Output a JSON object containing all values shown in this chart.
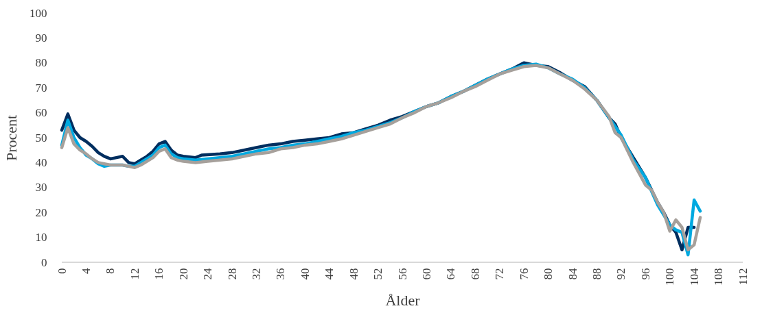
{
  "chart_data": {
    "type": "line",
    "xlabel": "Ålder",
    "ylabel": "Procent",
    "xlim": [
      0,
      112
    ],
    "xticks": [
      0,
      4,
      8,
      12,
      16,
      20,
      24,
      28,
      32,
      36,
      40,
      44,
      48,
      52,
      56,
      60,
      64,
      68,
      72,
      76,
      80,
      84,
      88,
      92,
      96,
      100,
      104,
      108,
      112
    ],
    "ylim": [
      0,
      100
    ],
    "yticks": [
      0,
      10,
      20,
      30,
      40,
      50,
      60,
      70,
      80,
      90,
      100
    ],
    "grid": false,
    "legend": false,
    "line_style": "solid",
    "marker": "none",
    "series": [
      {
        "color": "#002e5f",
        "x": [
          0,
          1,
          2,
          3,
          4,
          5,
          6,
          7,
          8,
          9,
          10,
          11,
          12,
          13,
          14,
          15,
          16,
          17,
          18,
          19,
          20,
          22,
          23,
          26,
          28,
          30,
          32,
          34,
          36,
          38,
          40,
          42,
          44,
          46,
          48,
          50,
          52,
          54,
          56,
          58,
          60,
          62,
          64,
          66,
          68,
          70,
          72,
          74,
          76,
          78,
          80,
          82,
          84,
          86,
          88,
          90,
          91,
          92,
          94,
          96,
          98,
          99,
          100,
          101,
          102,
          103,
          104
        ],
        "values": [
          53,
          59.5,
          53,
          50,
          48.5,
          46.5,
          44,
          42.5,
          41.5,
          42,
          42.5,
          40,
          39.5,
          41,
          42.5,
          44.5,
          47.5,
          48.5,
          45,
          43,
          42.5,
          42,
          43,
          43.5,
          44,
          45,
          46,
          47,
          47.5,
          48.5,
          49,
          49.5,
          50,
          51.5,
          52,
          53.5,
          55,
          57,
          58.5,
          60.5,
          62.5,
          64,
          66.5,
          68.5,
          71,
          73.5,
          75.5,
          77.5,
          80,
          79,
          78.5,
          76,
          73,
          70.5,
          65,
          58,
          55.5,
          50,
          42,
          34,
          24,
          20,
          15,
          12,
          5,
          14,
          14
        ]
      },
      {
        "color": "#00a9e0",
        "x": [
          0,
          1,
          2,
          3,
          4,
          5,
          6,
          7,
          8,
          9,
          10,
          11,
          12,
          13,
          14,
          15,
          16,
          17,
          18,
          19,
          20,
          22,
          24,
          26,
          28,
          30,
          32,
          34,
          36,
          38,
          40,
          42,
          44,
          46,
          48,
          50,
          52,
          54,
          56,
          58,
          60,
          62,
          64,
          66,
          68,
          70,
          72,
          74,
          76,
          78,
          80,
          82,
          84,
          86,
          88,
          90,
          92,
          94,
          96,
          98,
          100,
          101,
          102,
          103,
          104,
          105
        ],
        "values": [
          47,
          57,
          50,
          46,
          43,
          41.5,
          39.5,
          38.5,
          39,
          39,
          39,
          38.5,
          38.5,
          40,
          41.5,
          43,
          46,
          47,
          43.5,
          42,
          41.5,
          41,
          41.5,
          42,
          42.5,
          43.5,
          44.5,
          45.5,
          46,
          47,
          47.5,
          48.5,
          49.5,
          50.5,
          52,
          53,
          54.5,
          56,
          58,
          60.5,
          62.5,
          64,
          66.5,
          68.5,
          71,
          73.5,
          75.5,
          77.5,
          79,
          79.5,
          78,
          75.5,
          73.5,
          70,
          65,
          58,
          51,
          41,
          34,
          23,
          15,
          13,
          12,
          3,
          25,
          20.5
        ]
      },
      {
        "color": "#a6a09b",
        "x": [
          0,
          1,
          2,
          3,
          4,
          5,
          6,
          7,
          8,
          9,
          10,
          11,
          12,
          13,
          14,
          15,
          16,
          17,
          18,
          19,
          20,
          22,
          24,
          26,
          28,
          30,
          32,
          34,
          36,
          38,
          40,
          42,
          44,
          46,
          48,
          50,
          52,
          54,
          56,
          58,
          60,
          62,
          64,
          66,
          68,
          70,
          72,
          74,
          76,
          78,
          80,
          82,
          84,
          86,
          88,
          90,
          91,
          92,
          94,
          96,
          97,
          98,
          99,
          100,
          101,
          102,
          103,
          104,
          105
        ],
        "values": [
          46,
          54,
          47.5,
          45,
          43.5,
          41.5,
          40,
          39.5,
          39,
          39,
          39,
          38.5,
          38,
          39,
          40.5,
          42,
          44.5,
          45.5,
          42,
          41,
          40.5,
          40,
          40.5,
          41,
          41.5,
          42.5,
          43.5,
          44,
          45.5,
          46,
          47,
          47.5,
          48.5,
          49.5,
          51,
          52.5,
          54,
          55.5,
          58,
          60,
          62.5,
          64,
          66,
          68.5,
          70.5,
          73,
          75.5,
          77,
          78.5,
          79,
          78,
          75.5,
          73,
          69.5,
          65,
          58.5,
          52,
          50,
          40,
          31,
          29,
          24,
          20,
          12.5,
          17,
          14,
          5,
          7,
          18
        ]
      }
    ]
  }
}
